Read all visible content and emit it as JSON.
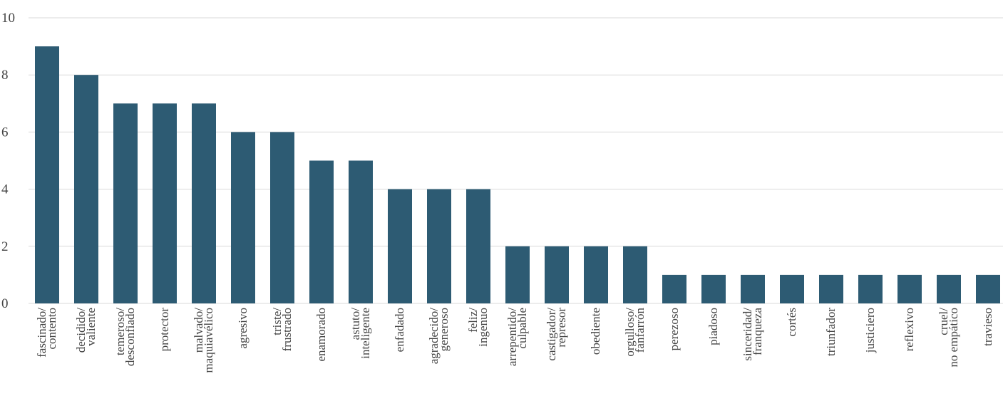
{
  "chart_data": {
    "type": "bar",
    "categories": [
      "fascinado/\ncontento",
      "decidido/\nvaliente",
      "temeroso/\ndesconfiado",
      "protector",
      "malvado/\nmaquiavélico",
      "agresivo",
      "triste/\nfrustrado",
      "enamorado",
      "astuto/\ninteligente",
      "enfadado",
      "agradecido/\ngeneroso",
      "feliz/\ningenuo",
      "arrepentido/\nculpable",
      "castigador/\nrepresor",
      "obediente",
      "orgulloso/\nfanfarrón",
      "perezoso",
      "piadoso",
      "sinceridad/\nfranqueza",
      "cortés",
      "triunfador",
      "justiciero",
      "reflexivo",
      "cruel/\nno empático",
      "travieso"
    ],
    "values": [
      9,
      8,
      7,
      7,
      7,
      6,
      6,
      5,
      5,
      4,
      4,
      4,
      2,
      2,
      2,
      2,
      1,
      1,
      1,
      1,
      1,
      1,
      1,
      1,
      1
    ],
    "color": "#2d5b73",
    "ylim": [
      0,
      10
    ],
    "yticks": [
      0,
      2,
      4,
      6,
      8,
      10
    ],
    "grid": true
  }
}
